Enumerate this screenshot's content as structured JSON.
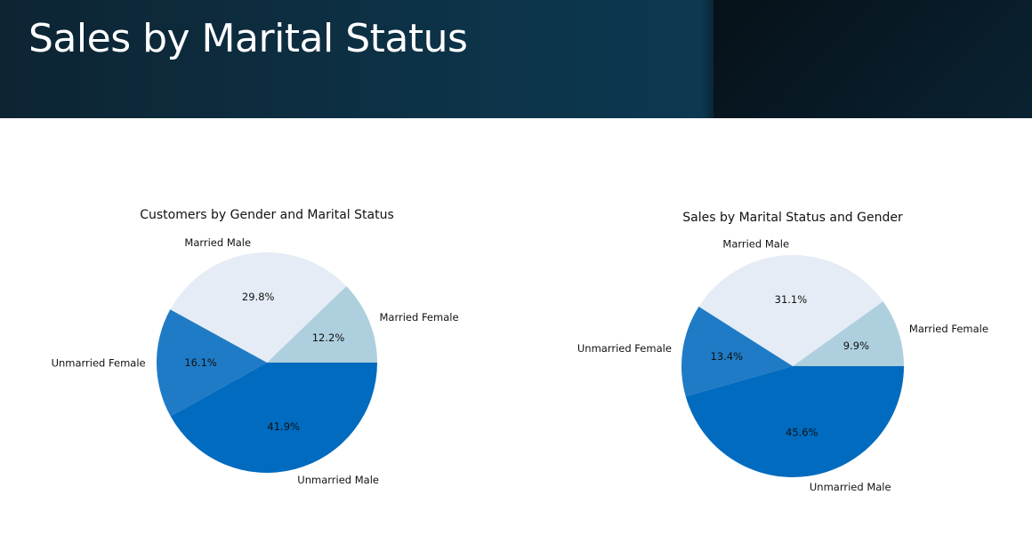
{
  "slide": {
    "title": "Sales by Marital Status"
  },
  "chart_data": [
    {
      "type": "pie",
      "title": "Customers by Gender and Marital Status",
      "categories": [
        "Married Female",
        "Married Male",
        "Unmarried Female",
        "Unmarried Male"
      ],
      "values": [
        12.2,
        29.8,
        16.1,
        41.9
      ],
      "labels": [
        "12.2%",
        "29.8%",
        "16.1%",
        "41.9%"
      ],
      "colors": [
        "#aecfde",
        "#e5ecf5",
        "#1f7bc6",
        "#006bbf"
      ]
    },
    {
      "type": "pie",
      "title": "Sales by Marital Status and Gender",
      "categories": [
        "Married Female",
        "Married Male",
        "Unmarried Female",
        "Unmarried Male"
      ],
      "values": [
        9.9,
        31.1,
        13.4,
        45.6
      ],
      "labels": [
        "9.9%",
        "31.1%",
        "13.4%",
        "45.6%"
      ],
      "colors": [
        "#aecfde",
        "#e5ecf5",
        "#1f7bc6",
        "#006bbf"
      ]
    }
  ]
}
